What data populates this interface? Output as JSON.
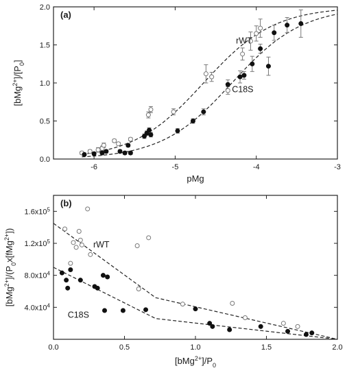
{
  "chart_data": [
    {
      "type": "scatter",
      "panel_label": "(a)",
      "xlabel": "pMg",
      "ylabel": "[bMg2+]/[P0]",
      "xlim": [
        -6.5,
        -3
      ],
      "ylim": [
        0,
        2.0
      ],
      "x_ticks": [
        -6,
        -5,
        -4,
        -3
      ],
      "x_tick_labels": [
        "-6",
        "-5",
        "-4",
        "-3"
      ],
      "y_ticks": [
        0,
        0.5,
        1.0,
        1.5,
        2.0
      ],
      "y_tick_labels": [
        "0.0",
        "0.5",
        "1.0",
        "1.5",
        "2.0"
      ],
      "annotations": [
        {
          "text": "rWT",
          "x": -4.25,
          "y": 1.52
        },
        {
          "text": "C18S",
          "x": -4.3,
          "y": 0.88
        }
      ],
      "series": [
        {
          "name": "rWT",
          "marker": "open-circle",
          "points": [
            {
              "x": -6.15,
              "y": 0.08,
              "err": 0.02
            },
            {
              "x": -6.05,
              "y": 0.1,
              "err": 0.02
            },
            {
              "x": -5.95,
              "y": 0.12,
              "err": 0.03
            },
            {
              "x": -5.9,
              "y": 0.14,
              "err": 0.03
            },
            {
              "x": -5.88,
              "y": 0.18,
              "err": 0.03
            },
            {
              "x": -5.75,
              "y": 0.24,
              "err": 0.02
            },
            {
              "x": -5.7,
              "y": 0.2,
              "err": 0.02
            },
            {
              "x": -5.55,
              "y": 0.26,
              "err": 0.02
            },
            {
              "x": -5.33,
              "y": 0.58,
              "err": 0.04
            },
            {
              "x": -5.3,
              "y": 0.65,
              "err": 0.04
            },
            {
              "x": -5.02,
              "y": 0.62,
              "err": 0.04
            },
            {
              "x": -4.62,
              "y": 1.12,
              "err": 0.12
            },
            {
              "x": -4.55,
              "y": 1.08,
              "err": 0.06
            },
            {
              "x": -4.35,
              "y": 0.9,
              "err": 0.05
            },
            {
              "x": -4.17,
              "y": 1.38,
              "err": 0.08
            },
            {
              "x": -4.07,
              "y": 1.55,
              "err": 0.12
            },
            {
              "x": -4.0,
              "y": 1.65,
              "err": 0.1
            },
            {
              "x": -3.95,
              "y": 1.72,
              "err": 0.12
            }
          ]
        },
        {
          "name": "C18S",
          "marker": "filled-circle",
          "points": [
            {
              "x": -6.12,
              "y": 0.06,
              "err": 0.02
            },
            {
              "x": -6.0,
              "y": 0.07,
              "err": 0.02
            },
            {
              "x": -5.9,
              "y": 0.08,
              "err": 0.02
            },
            {
              "x": -5.85,
              "y": 0.1,
              "err": 0.02
            },
            {
              "x": -5.68,
              "y": 0.1,
              "err": 0.02
            },
            {
              "x": -5.62,
              "y": 0.08,
              "err": 0.02
            },
            {
              "x": -5.55,
              "y": 0.08,
              "err": 0.02
            },
            {
              "x": -5.58,
              "y": 0.18,
              "err": 0.02
            },
            {
              "x": -5.38,
              "y": 0.3,
              "err": 0.03
            },
            {
              "x": -5.35,
              "y": 0.34,
              "err": 0.03
            },
            {
              "x": -5.3,
              "y": 0.32,
              "err": 0.03
            },
            {
              "x": -5.32,
              "y": 0.38,
              "err": 0.03
            },
            {
              "x": -4.97,
              "y": 0.37,
              "err": 0.03
            },
            {
              "x": -4.78,
              "y": 0.5,
              "err": 0.03
            },
            {
              "x": -4.65,
              "y": 0.62,
              "err": 0.04
            },
            {
              "x": -4.35,
              "y": 0.98,
              "err": 0.06
            },
            {
              "x": -4.2,
              "y": 1.08,
              "err": 0.08
            },
            {
              "x": -4.15,
              "y": 1.1,
              "err": 0.05
            },
            {
              "x": -4.05,
              "y": 1.25,
              "err": 0.1
            },
            {
              "x": -3.95,
              "y": 1.45,
              "err": 0.06
            },
            {
              "x": -3.85,
              "y": 1.22,
              "err": 0.12
            },
            {
              "x": -3.78,
              "y": 1.66,
              "err": 0.1
            },
            {
              "x": -3.62,
              "y": 1.76,
              "err": 0.1
            },
            {
              "x": -3.45,
              "y": 1.78,
              "err": 0.18
            }
          ]
        }
      ],
      "fits": [
        {
          "name": "rWT",
          "Bmax": 2.0,
          "pK": -4.65,
          "n": 1.0
        },
        {
          "name": "C18S",
          "Bmax": 2.0,
          "pK": -4.3,
          "n": 1.0
        }
      ]
    },
    {
      "type": "scatter",
      "panel_label": "(b)",
      "xlabel": "[bMg2+]/P0",
      "ylabel": "[bMg2+]/(P0x[fMg2+])",
      "xlim": [
        0,
        2.0
      ],
      "ylim": [
        0,
        180000
      ],
      "x_ticks": [
        0,
        0.5,
        1.0,
        1.5,
        2.0
      ],
      "x_tick_labels": [
        "0.0",
        "0.5",
        "1.0",
        "1.5",
        "2.0"
      ],
      "y_ticks": [
        40000,
        80000,
        120000,
        160000
      ],
      "y_tick_labels": [
        "4.0x104",
        "8.0x104",
        "1.2x105",
        "1.6x105"
      ],
      "annotations": [
        {
          "text": "rWT",
          "x": 0.28,
          "y": 115000
        },
        {
          "text": "C18S",
          "x": 0.1,
          "y": 27000
        }
      ],
      "series": [
        {
          "name": "rWT",
          "marker": "open-circle",
          "points": [
            {
              "x": 0.08,
              "y": 138000
            },
            {
              "x": 0.12,
              "y": 95000
            },
            {
              "x": 0.14,
              "y": 121000
            },
            {
              "x": 0.16,
              "y": 115000
            },
            {
              "x": 0.18,
              "y": 135000
            },
            {
              "x": 0.19,
              "y": 124000
            },
            {
              "x": 0.2,
              "y": 118000
            },
            {
              "x": 0.24,
              "y": 163000
            },
            {
              "x": 0.26,
              "y": 106000
            },
            {
              "x": 0.59,
              "y": 117000
            },
            {
              "x": 0.6,
              "y": 63000
            },
            {
              "x": 0.67,
              "y": 127000
            },
            {
              "x": 0.91,
              "y": 44000
            },
            {
              "x": 1.26,
              "y": 45000
            },
            {
              "x": 1.35,
              "y": 27000
            },
            {
              "x": 1.62,
              "y": 20000
            },
            {
              "x": 1.72,
              "y": 16000
            }
          ]
        },
        {
          "name": "C18S",
          "marker": "filled-circle",
          "points": [
            {
              "x": 0.06,
              "y": 83000
            },
            {
              "x": 0.09,
              "y": 74000
            },
            {
              "x": 0.1,
              "y": 64000
            },
            {
              "x": 0.12,
              "y": 87000
            },
            {
              "x": 0.19,
              "y": 74000
            },
            {
              "x": 0.29,
              "y": 66000
            },
            {
              "x": 0.31,
              "y": 64000
            },
            {
              "x": 0.35,
              "y": 80000
            },
            {
              "x": 0.36,
              "y": 36000
            },
            {
              "x": 0.38,
              "y": 78000
            },
            {
              "x": 0.49,
              "y": 36000
            },
            {
              "x": 0.65,
              "y": 37000
            },
            {
              "x": 1.0,
              "y": 38000
            },
            {
              "x": 1.1,
              "y": 20000
            },
            {
              "x": 1.12,
              "y": 16000
            },
            {
              "x": 1.24,
              "y": 12000
            },
            {
              "x": 1.46,
              "y": 16000
            },
            {
              "x": 1.65,
              "y": 10000
            },
            {
              "x": 1.78,
              "y": 6000
            },
            {
              "x": 1.82,
              "y": 8000
            }
          ]
        }
      ],
      "fit_lines": [
        {
          "name": "rWT",
          "points": [
            [
              0,
              145000
            ],
            [
              0.72,
              52000
            ],
            [
              2.0,
              0
            ]
          ]
        },
        {
          "name": "C18S",
          "points": [
            [
              0,
              90000
            ],
            [
              0.72,
              26000
            ],
            [
              2.0,
              0
            ]
          ]
        }
      ]
    }
  ]
}
